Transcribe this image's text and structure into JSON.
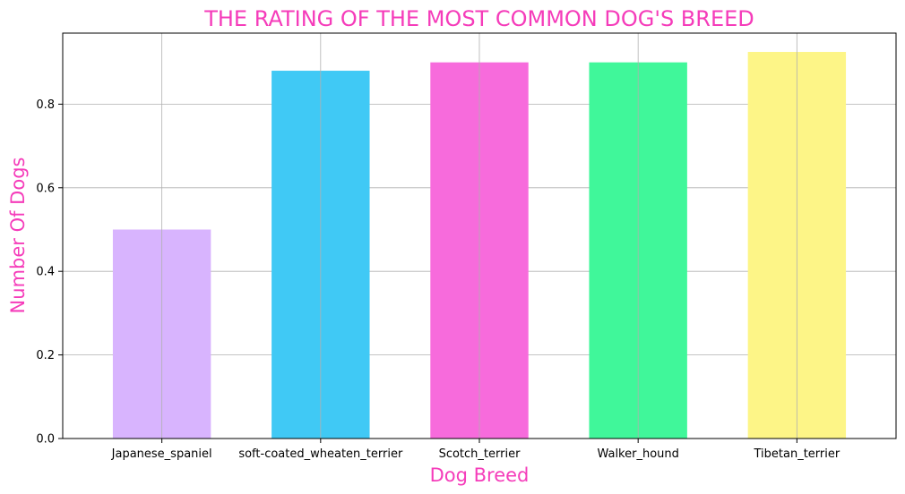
{
  "chart_data": {
    "type": "bar",
    "title": "THE RATING OF THE MOST COMMON DOG'S BREED",
    "xlabel": "Dog Breed",
    "ylabel": "Number Of Dogs",
    "categories": [
      "Japanese_spaniel",
      "soft-coated_wheaten_terrier",
      "Scotch_terrier",
      "Walker_hound",
      "Tibetan_terrier"
    ],
    "values": [
      0.5,
      0.88,
      0.9,
      0.9,
      0.925
    ],
    "bar_colors": [
      "#d8b4fe",
      "#40c9f5",
      "#f76bdc",
      "#40f79a",
      "#fdf587"
    ],
    "yticks": [
      "0.0",
      "0.2",
      "0.4",
      "0.6",
      "0.8"
    ],
    "ylim": [
      0,
      0.97
    ],
    "grid": true,
    "label_color": "#f53cba"
  }
}
